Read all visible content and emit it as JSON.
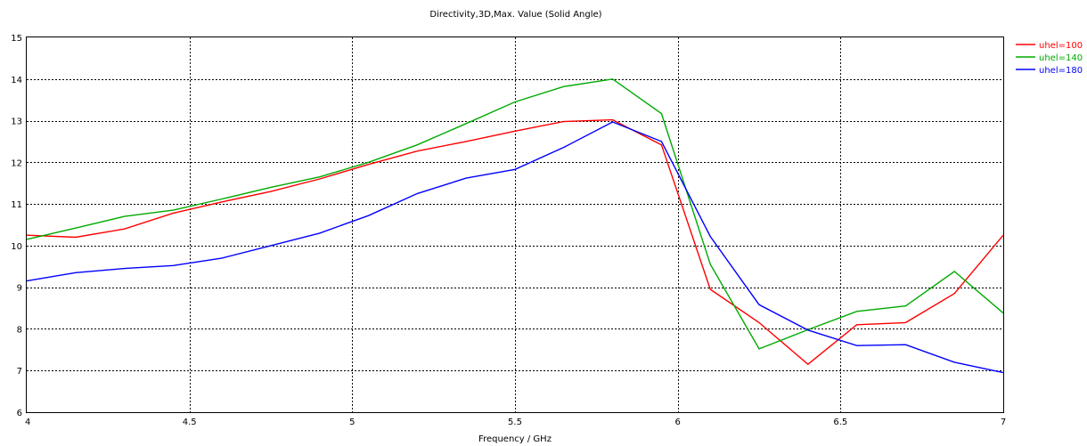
{
  "chart_data": {
    "type": "line",
    "title": "Directivity,3D,Max. Value (Solid Angle)",
    "xlabel": "Frequency / GHz",
    "ylabel": "",
    "xlim": [
      4,
      7
    ],
    "ylim": [
      6,
      15
    ],
    "x_ticks": [
      4,
      4.5,
      5,
      5.5,
      6,
      6.5,
      7
    ],
    "x_tick_labels": [
      "4",
      "4.5",
      "5",
      "5.5",
      "6",
      "6.5",
      "7"
    ],
    "y_ticks": [
      6,
      7,
      8,
      9,
      10,
      11,
      12,
      13,
      14,
      15
    ],
    "y_tick_labels": [
      "6",
      "7",
      "8",
      "9",
      "10",
      "11",
      "12",
      "13",
      "14",
      "15"
    ],
    "grid": true,
    "legend_position": "top-right",
    "series": [
      {
        "name": "uhel=100",
        "color": "#ff0000",
        "x": [
          4,
          4.15,
          4.3,
          4.45,
          4.6,
          4.75,
          4.9,
          5.05,
          5.2,
          5.35,
          5.5,
          5.65,
          5.8,
          5.95,
          6.1,
          6.25,
          6.4,
          6.55,
          6.7,
          6.85,
          7
        ],
        "y": [
          10.25,
          10.2,
          10.4,
          10.78,
          11.05,
          11.3,
          11.6,
          11.95,
          12.27,
          12.5,
          12.75,
          12.98,
          13.02,
          12.42,
          8.95,
          8.15,
          7.15,
          8.1,
          8.15,
          8.85,
          10.25
        ]
      },
      {
        "name": "uhel=140",
        "color": "#00aa00",
        "x": [
          4,
          4.15,
          4.3,
          4.45,
          4.6,
          4.75,
          4.9,
          5.05,
          5.2,
          5.35,
          5.5,
          5.65,
          5.8,
          5.95,
          6.1,
          6.25,
          6.4,
          6.55,
          6.7,
          6.85,
          7
        ],
        "y": [
          10.15,
          10.42,
          10.7,
          10.85,
          11.12,
          11.4,
          11.65,
          12.0,
          12.42,
          12.93,
          13.45,
          13.82,
          14.0,
          13.17,
          9.55,
          7.52,
          7.98,
          8.42,
          8.55,
          9.38,
          8.38
        ]
      },
      {
        "name": "uhel=180",
        "color": "#0000ff",
        "x": [
          4,
          4.15,
          4.3,
          4.45,
          4.6,
          4.75,
          4.9,
          5.05,
          5.2,
          5.35,
          5.5,
          5.65,
          5.8,
          5.95,
          6.1,
          6.25,
          6.4,
          6.55,
          6.7,
          6.85,
          7
        ],
        "y": [
          9.15,
          9.35,
          9.45,
          9.52,
          9.7,
          10.0,
          10.3,
          10.72,
          11.25,
          11.62,
          11.83,
          12.36,
          12.97,
          12.5,
          10.22,
          8.58,
          7.97,
          7.6,
          7.62,
          7.2,
          6.95
        ]
      }
    ]
  }
}
